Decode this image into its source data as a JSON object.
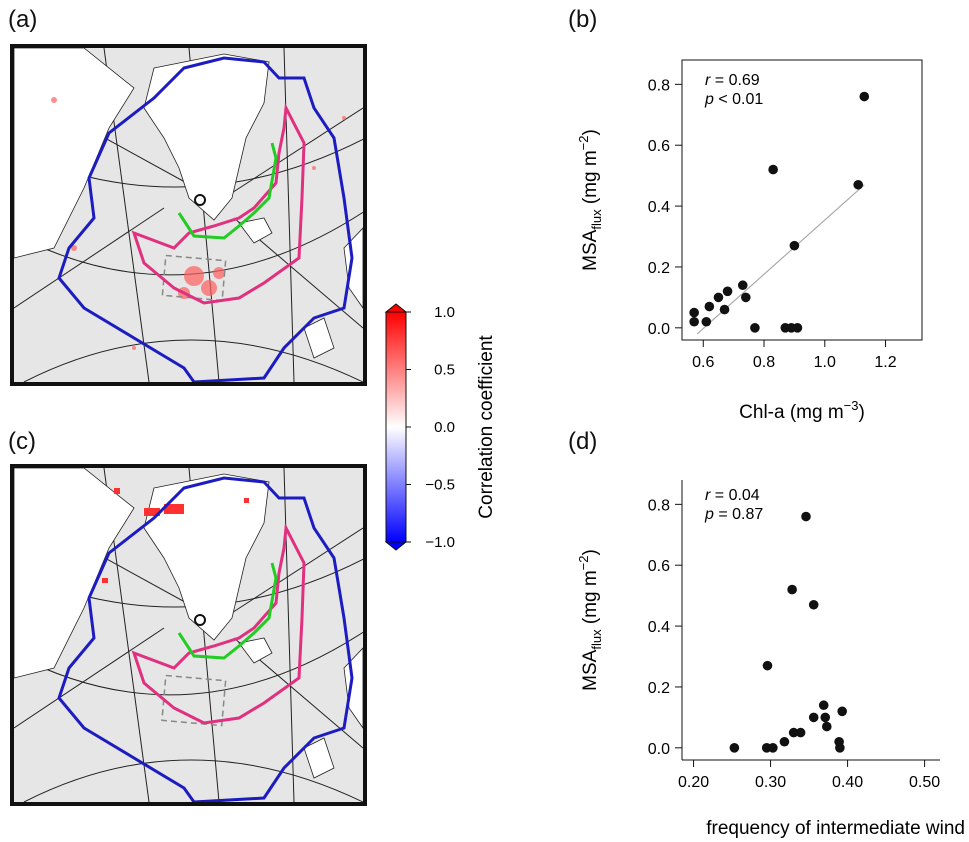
{
  "panels": {
    "a": "(a)",
    "b": "(b)",
    "c": "(c)",
    "d": "(d)"
  },
  "colorbar": {
    "label": "Correlation coefficient",
    "ticks": [
      "1.0",
      "0.5",
      "0.0",
      "−0.5",
      "−1.0"
    ],
    "colors": {
      "high": "#ff0000",
      "mid": "#ffffff",
      "low": "#0000ff"
    }
  },
  "map_colors": {
    "land_ice": "#ffffff",
    "ocean": "#e6e6e6",
    "contour_blue": "#1c1cc0",
    "contour_pink": "#e0307f",
    "contour_green": "#22cc22",
    "box": "#888888"
  },
  "chart_data": [
    {
      "id": "b",
      "type": "scatter",
      "xlabel": "Chl-a (mg m",
      "xlabel_sup": "−3",
      "ylabel_main": "MSA",
      "ylabel_sub": "flux",
      "ylabel_unit": " (mg m",
      "ylabel_sup": "−2",
      "xlim": [
        0.53,
        1.32
      ],
      "ylim": [
        -0.04,
        0.88
      ],
      "xticks": [
        "0.6",
        "0.8",
        "1.0",
        "1.2"
      ],
      "xtick_values": [
        0.6,
        0.8,
        1.0,
        1.2
      ],
      "yticks": [
        "0.0",
        "0.2",
        "0.4",
        "0.6",
        "0.8"
      ],
      "ytick_values": [
        0.0,
        0.2,
        0.4,
        0.6,
        0.8
      ],
      "stat_r_label": "r",
      "stat_r": " = 0.69",
      "stat_p_label": "p",
      "stat_p": " < 0.01",
      "fit_line": {
        "x": [
          0.58,
          1.13
        ],
        "y": [
          -0.02,
          0.47
        ]
      },
      "points": [
        {
          "x": 0.57,
          "y": 0.05
        },
        {
          "x": 0.57,
          "y": 0.02
        },
        {
          "x": 0.61,
          "y": 0.02
        },
        {
          "x": 0.62,
          "y": 0.07
        },
        {
          "x": 0.65,
          "y": 0.1
        },
        {
          "x": 0.67,
          "y": 0.06
        },
        {
          "x": 0.68,
          "y": 0.12
        },
        {
          "x": 0.73,
          "y": 0.14
        },
        {
          "x": 0.74,
          "y": 0.1
        },
        {
          "x": 0.77,
          "y": 0.0
        },
        {
          "x": 0.83,
          "y": 0.52
        },
        {
          "x": 0.87,
          "y": 0.0
        },
        {
          "x": 0.89,
          "y": 0.0
        },
        {
          "x": 0.9,
          "y": 0.27
        },
        {
          "x": 0.91,
          "y": 0.0
        },
        {
          "x": 1.11,
          "y": 0.47
        },
        {
          "x": 1.13,
          "y": 0.76
        }
      ]
    },
    {
      "id": "d",
      "type": "scatter",
      "xlabel": "frequency of intermediate wind",
      "ylabel_main": "MSA",
      "ylabel_sub": "flux",
      "ylabel_unit": " (mg m",
      "ylabel_sup": "−2",
      "xlim": [
        0.185,
        0.52
      ],
      "ylim": [
        -0.04,
        0.88
      ],
      "xticks": [
        "0.20",
        "0.30",
        "0.40",
        "0.50"
      ],
      "xtick_values": [
        0.2,
        0.3,
        0.4,
        0.5
      ],
      "yticks": [
        "0.0",
        "0.2",
        "0.4",
        "0.6",
        "0.8"
      ],
      "ytick_values": [
        0.0,
        0.2,
        0.4,
        0.6,
        0.8
      ],
      "stat_r_label": "r",
      "stat_r": " = 0.04",
      "stat_p_label": "p",
      "stat_p": " = 0.87",
      "points": [
        {
          "x": 0.253,
          "y": 0.0
        },
        {
          "x": 0.295,
          "y": 0.0
        },
        {
          "x": 0.296,
          "y": 0.27
        },
        {
          "x": 0.303,
          "y": 0.0
        },
        {
          "x": 0.318,
          "y": 0.02
        },
        {
          "x": 0.328,
          "y": 0.52
        },
        {
          "x": 0.33,
          "y": 0.05
        },
        {
          "x": 0.339,
          "y": 0.05
        },
        {
          "x": 0.346,
          "y": 0.76
        },
        {
          "x": 0.356,
          "y": 0.47
        },
        {
          "x": 0.356,
          "y": 0.1
        },
        {
          "x": 0.369,
          "y": 0.14
        },
        {
          "x": 0.371,
          "y": 0.1
        },
        {
          "x": 0.373,
          "y": 0.07
        },
        {
          "x": 0.389,
          "y": 0.02
        },
        {
          "x": 0.39,
          "y": 0.0
        },
        {
          "x": 0.393,
          "y": 0.12
        }
      ]
    }
  ]
}
